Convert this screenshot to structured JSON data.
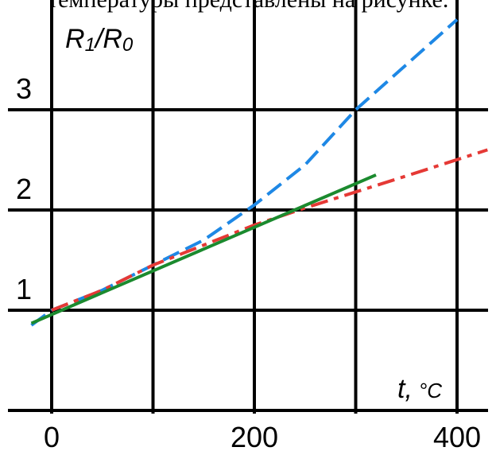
{
  "header_text": "температуры представлены на рисунке.",
  "chart_data": {
    "type": "line",
    "ylabel": "R",
    "ylabel_sub1": "1",
    "ylabel_sep": "/R",
    "ylabel_sub0": "0",
    "xlabel_var": "t,",
    "xlabel_unit": "°C",
    "x_ticks": [
      0,
      200,
      400
    ],
    "y_ticks": [
      1,
      2,
      3
    ],
    "x_ticks_labels": [
      "0",
      "200",
      "400"
    ],
    "y_ticks_labels": [
      "1",
      "2",
      "3"
    ],
    "xlim": [
      -20,
      430
    ],
    "ylim": [
      0,
      3.9
    ],
    "grid": true,
    "series": [
      {
        "color": "#1e88e5",
        "dash": "blue-dashed",
        "x": [
          -20,
          0,
          50,
          100,
          150,
          200,
          250,
          300,
          350,
          400
        ],
        "y": [
          0.85,
          1.0,
          1.2,
          1.45,
          1.7,
          2.05,
          2.45,
          3.0,
          3.45,
          3.9
        ]
      },
      {
        "color": "#e53935",
        "dash": "red-dashdot",
        "x": [
          0,
          50,
          100,
          150,
          200,
          250,
          300,
          350,
          430
        ],
        "y": [
          1.0,
          1.2,
          1.45,
          1.65,
          1.85,
          2.02,
          2.18,
          2.34,
          2.6
        ]
      },
      {
        "color": "#1b8a2e",
        "dash": "green-solid",
        "x": [
          -20,
          320
        ],
        "y": [
          0.87,
          2.35
        ]
      }
    ]
  }
}
